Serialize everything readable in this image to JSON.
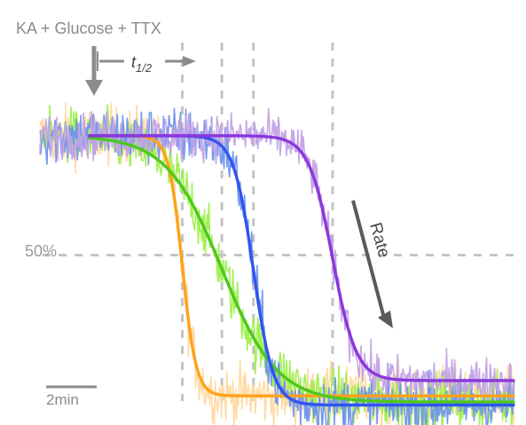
{
  "chart_data": {
    "type": "line",
    "title": "",
    "xlabel": "",
    "ylabel": "",
    "x_unit": "min",
    "xlim": [
      0,
      24
    ],
    "ylim": [
      0,
      100
    ],
    "annotations": {
      "stimulus": "KA + Glucose + TTX",
      "half_time": "t1/2",
      "half_time_base": "t",
      "half_time_sub": "1/2",
      "fifty_percent": "50%",
      "rate": "Rate",
      "scale_bar": "2min",
      "scale_bar_minutes": 2,
      "stimulus_time_min": 2.5
    },
    "reference_lines": {
      "y_half": 50,
      "x_half_times_min": [
        7.2,
        9.2,
        10.8,
        14.8
      ]
    },
    "series": [
      {
        "color": "#ffa11a",
        "raw_color": "#ffd9a0",
        "start": 89,
        "end": 4,
        "t_half": 7.2,
        "width": 0.35,
        "noise": 5
      },
      {
        "color": "#4ec81c",
        "raw_color": "#9ef04e",
        "start": 89,
        "end": 2,
        "t_half": 9.2,
        "width": 1.4,
        "noise": 5
      },
      {
        "color": "#3154f2",
        "raw_color": "#6f93ec",
        "start": 89,
        "end": 1,
        "t_half": 10.8,
        "width": 0.5,
        "noise": 5
      },
      {
        "color": "#8b37dc",
        "raw_color": "#c3a2e6",
        "start": 89,
        "end": 9,
        "t_half": 14.8,
        "width": 0.6,
        "noise": 4
      }
    ]
  }
}
